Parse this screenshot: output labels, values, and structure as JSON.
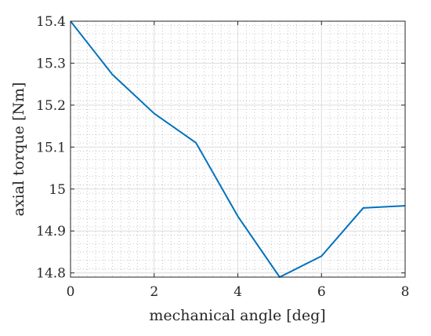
{
  "chart_data": {
    "type": "line",
    "title": "",
    "xlabel": "mechanical angle [deg]",
    "ylabel": "axial torque [Nm]",
    "xlim": [
      0,
      8
    ],
    "ylim": [
      14.79,
      15.4
    ],
    "xticks": [
      0,
      2,
      4,
      6,
      8
    ],
    "xtick_labels": [
      "0",
      "2",
      "4",
      "6",
      "8"
    ],
    "yticks": [
      14.8,
      14.9,
      15.0,
      15.1,
      15.2,
      15.3,
      15.4
    ],
    "ytick_labels": [
      "14.8",
      "14.9",
      "15",
      "15.1",
      "15.2",
      "15.3",
      "15.4"
    ],
    "x_minor_step": 0.2,
    "y_minor_step": 0.02,
    "grid": true,
    "minor_grid": true,
    "series": [
      {
        "x": [
          0,
          1,
          2,
          3,
          4,
          5,
          6,
          7,
          8
        ],
        "values": [
          15.4,
          15.273,
          15.18,
          15.11,
          14.935,
          14.79,
          14.84,
          14.955,
          14.96
        ],
        "color": "#0072BD"
      }
    ]
  }
}
